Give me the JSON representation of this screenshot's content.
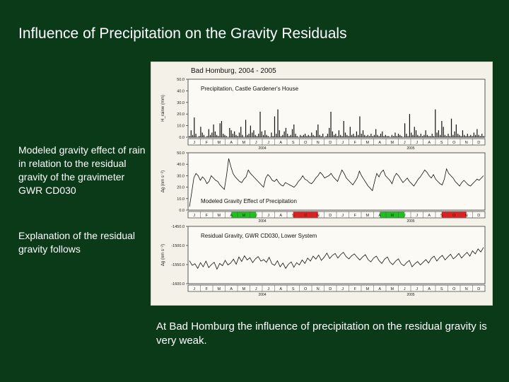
{
  "slide": {
    "title": "Influence of Precipitation on the Gravity Residuals",
    "figure_caption": "Bad Homburg, 2004 - 2005",
    "side_text_1": "Modeled gravity effect of rain in relation to the residual gravity of the gravimeter GWR CD030",
    "side_text_2": "Explanation of the residual gravity follows",
    "conclusion": "At Bad Homburg the influence of precipitation on the residual gravity is very weak."
  },
  "colors": {
    "background": "#0a3a18",
    "panel": "#f4f1e8",
    "series": "#111111",
    "highlight_green": "#1fbf1f",
    "highlight_red": "#e02020"
  },
  "chart_data": [
    {
      "type": "bar",
      "title": "Precipitation, Castle Gardener's House",
      "ylabel": "H_rainw (mm)",
      "ylim": [
        0,
        50
      ],
      "yticks": [
        "50.0",
        "40.0",
        "30.0",
        "20.0",
        "10.0",
        "0.0"
      ],
      "months": [
        "J",
        "F",
        "M",
        "A",
        "M",
        "J",
        "J",
        "A",
        "S",
        "O",
        "N",
        "D",
        "J",
        "F",
        "M",
        "A",
        "M",
        "J",
        "J",
        "A",
        "S",
        "O",
        "N",
        "D"
      ],
      "years": [
        "2004",
        "2005"
      ],
      "values": [
        1,
        6,
        2,
        17,
        3,
        0,
        1,
        9,
        4,
        2,
        0,
        1,
        7,
        2,
        4,
        11,
        5,
        2,
        1,
        12,
        14,
        3,
        2,
        1,
        0,
        8,
        6,
        3,
        5,
        2,
        1,
        4,
        9,
        2,
        0,
        15,
        2,
        3,
        10,
        4,
        6,
        2,
        1,
        3,
        22,
        5,
        2,
        6,
        2,
        1,
        0,
        4,
        1,
        18,
        3,
        24,
        6,
        1,
        2,
        5,
        8,
        3,
        1,
        2,
        7,
        11,
        3,
        1,
        0,
        2,
        1,
        2,
        3,
        1,
        2,
        1,
        4,
        2,
        1,
        6,
        11,
        2,
        1,
        3,
        0,
        1,
        3,
        8,
        22,
        5,
        2,
        3,
        1,
        6,
        2,
        1,
        14,
        4,
        2,
        1,
        9,
        2,
        3,
        1,
        5,
        2,
        18,
        3,
        6,
        2,
        1,
        2,
        1,
        3,
        1,
        2,
        7,
        2,
        1,
        3,
        5,
        1,
        2,
        1,
        1,
        0,
        2,
        1,
        4,
        1,
        3,
        2,
        1,
        0,
        12,
        3,
        1,
        20,
        4,
        2,
        9,
        6,
        2,
        1,
        3,
        1,
        2,
        6,
        2,
        1,
        1,
        3,
        1,
        24,
        4,
        6,
        2,
        14,
        9,
        2,
        1,
        3,
        1,
        16,
        2,
        5,
        11,
        3,
        2,
        1,
        6,
        2,
        1,
        3,
        1,
        2,
        1,
        4,
        2,
        7,
        2,
        1,
        3,
        1
      ]
    },
    {
      "type": "line",
      "title": "Modeled Gravity Effect of Precipitation",
      "ylabel": "Δg (nm s⁻²)",
      "ylim": [
        0,
        50
      ],
      "yticks": [
        "50.0",
        "40.0",
        "30.0",
        "20.0",
        "10.0",
        "0.0"
      ],
      "months": [
        "J",
        "F",
        "M",
        "A",
        "M",
        "J",
        "J",
        "A",
        "S",
        "O",
        "N",
        "D",
        "J",
        "F",
        "M",
        "A",
        "M",
        "J",
        "J",
        "A",
        "S",
        "O",
        "N",
        "D"
      ],
      "years": [
        "2004",
        "2005"
      ],
      "values": [
        3,
        15,
        28,
        32,
        30,
        26,
        29,
        27,
        23,
        25,
        30,
        28,
        26,
        25,
        22,
        20,
        18,
        30,
        45,
        38,
        32,
        29,
        27,
        25,
        24,
        27,
        29,
        35,
        32,
        30,
        28,
        26,
        24,
        22,
        20,
        28,
        31,
        29,
        26,
        25,
        27,
        24,
        22,
        21,
        24,
        23,
        22,
        21,
        20,
        22,
        25,
        27,
        30,
        27,
        26,
        24,
        23,
        25,
        28,
        30,
        33,
        31,
        28,
        29,
        30,
        32,
        29,
        27,
        25,
        30,
        35,
        32,
        28,
        26,
        24,
        22,
        25,
        28,
        34,
        30,
        27,
        24,
        21,
        19,
        17,
        25,
        32,
        29,
        33,
        35,
        30,
        28,
        26,
        23,
        29,
        32,
        30,
        27,
        24,
        26,
        28,
        25,
        23,
        21,
        24,
        27,
        29,
        32,
        35,
        33,
        30,
        28,
        31,
        27,
        25,
        23,
        22,
        27,
        36,
        32,
        30,
        28,
        25,
        23,
        21,
        24,
        26,
        24,
        22,
        21,
        23,
        25,
        27,
        26,
        28,
        30
      ]
    },
    {
      "type": "line",
      "title": "Residual Gravity, GWR CD030, Lower System",
      "ylabel": "Δg (nm s⁻²)",
      "ylim": [
        -1600,
        -1450
      ],
      "yticks": [
        "-1450.0",
        "-1500.0",
        "-1550.0",
        "-1600.0"
      ],
      "months": [
        "J",
        "F",
        "M",
        "A",
        "M",
        "J",
        "J",
        "A",
        "S",
        "O",
        "N",
        "D",
        "J",
        "F",
        "M",
        "A",
        "M",
        "J",
        "J",
        "A",
        "S",
        "O",
        "N",
        "D"
      ],
      "years": [
        "2004",
        "2005"
      ],
      "values": [
        -1540,
        -1552,
        -1548,
        -1560,
        -1545,
        -1556,
        -1541,
        -1558,
        -1550,
        -1544,
        -1562,
        -1547,
        -1553,
        -1539,
        -1551,
        -1546,
        -1536,
        -1549,
        -1530,
        -1542,
        -1527,
        -1538,
        -1532,
        -1545,
        -1535,
        -1529,
        -1541,
        -1537,
        -1544,
        -1531,
        -1548,
        -1552,
        -1540,
        -1556,
        -1546,
        -1560,
        -1549,
        -1543,
        -1557,
        -1545,
        -1551,
        -1538,
        -1547,
        -1533,
        -1541,
        -1528,
        -1536,
        -1525,
        -1539,
        -1531,
        -1520,
        -1534,
        -1526,
        -1521,
        -1533,
        -1524,
        -1518,
        -1529,
        -1535,
        -1527,
        -1522,
        -1531,
        -1538,
        -1530,
        -1524,
        -1537,
        -1543,
        -1533,
        -1528,
        -1540,
        -1547,
        -1536,
        -1530,
        -1544,
        -1550,
        -1541,
        -1535,
        -1548,
        -1553,
        -1545,
        -1539,
        -1556,
        -1548,
        -1542,
        -1551,
        -1544,
        -1537,
        -1546,
        -1534,
        -1528,
        -1541,
        -1532,
        -1526,
        -1538,
        -1530,
        -1523,
        -1535,
        -1529,
        -1521,
        -1533,
        -1525,
        -1518,
        -1528,
        -1514,
        -1522,
        -1509,
        -1517,
        -1505
      ],
      "highlight_bars": [
        {
          "months": "M–J 2004",
          "color": "green"
        },
        {
          "months": "S–O 2004",
          "color": "red"
        },
        {
          "months": "M–J 2005",
          "color": "green"
        },
        {
          "months": "S–O 2005",
          "color": "red"
        }
      ]
    }
  ]
}
